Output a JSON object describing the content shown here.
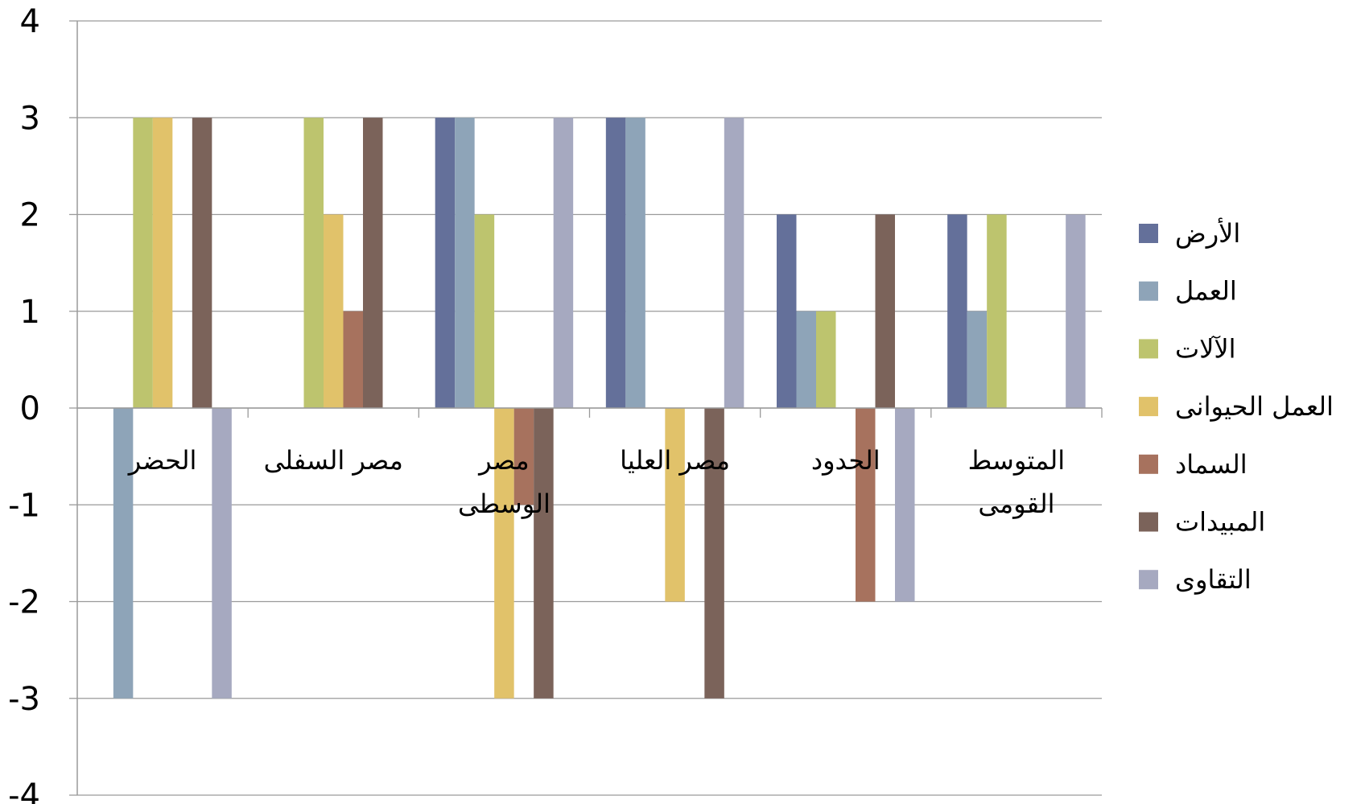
{
  "chart_data": {
    "type": "bar",
    "categories": [
      [
        "الحضر"
      ],
      [
        "مصر السفلى"
      ],
      [
        "مصر",
        "الوسطى"
      ],
      [
        "مصر العليا"
      ],
      [
        "الحدود"
      ],
      [
        "المتوسط",
        "القومى"
      ]
    ],
    "series": [
      {
        "name": "الأرض",
        "color": "#64709A",
        "values": [
          0,
          0,
          3,
          3,
          2,
          2
        ]
      },
      {
        "name": "العمل",
        "color": "#8EA4B8",
        "values": [
          -3,
          0,
          3,
          3,
          1,
          1
        ]
      },
      {
        "name": "الآلات",
        "color": "#BDC46E",
        "values": [
          3,
          3,
          2,
          0,
          1,
          2
        ]
      },
      {
        "name": "العمل الحيوانى",
        "color": "#E1C26A",
        "values": [
          3,
          2,
          -3,
          -2,
          0,
          0
        ]
      },
      {
        "name": "السماد",
        "color": "#A7725E",
        "values": [
          0,
          1,
          -1,
          0,
          -2,
          0
        ]
      },
      {
        "name": "المبيدات",
        "color": "#7B635A",
        "values": [
          3,
          3,
          -3,
          -3,
          2,
          0
        ]
      },
      {
        "name": "التقاوى",
        "color": "#A6A9C0",
        "values": [
          -3,
          0,
          3,
          3,
          -2,
          2
        ]
      }
    ],
    "yticks": [
      -4,
      -3,
      -2,
      -1,
      0,
      1,
      2,
      3,
      4
    ],
    "ytick_labels": [
      "-4",
      "-3",
      "-2",
      "-1",
      "0",
      "1",
      "2",
      "3",
      "4"
    ],
    "ylim": [
      -4,
      4
    ],
    "grid": true,
    "legend_position": "right",
    "title": "",
    "xlabel": "",
    "ylabel": ""
  }
}
